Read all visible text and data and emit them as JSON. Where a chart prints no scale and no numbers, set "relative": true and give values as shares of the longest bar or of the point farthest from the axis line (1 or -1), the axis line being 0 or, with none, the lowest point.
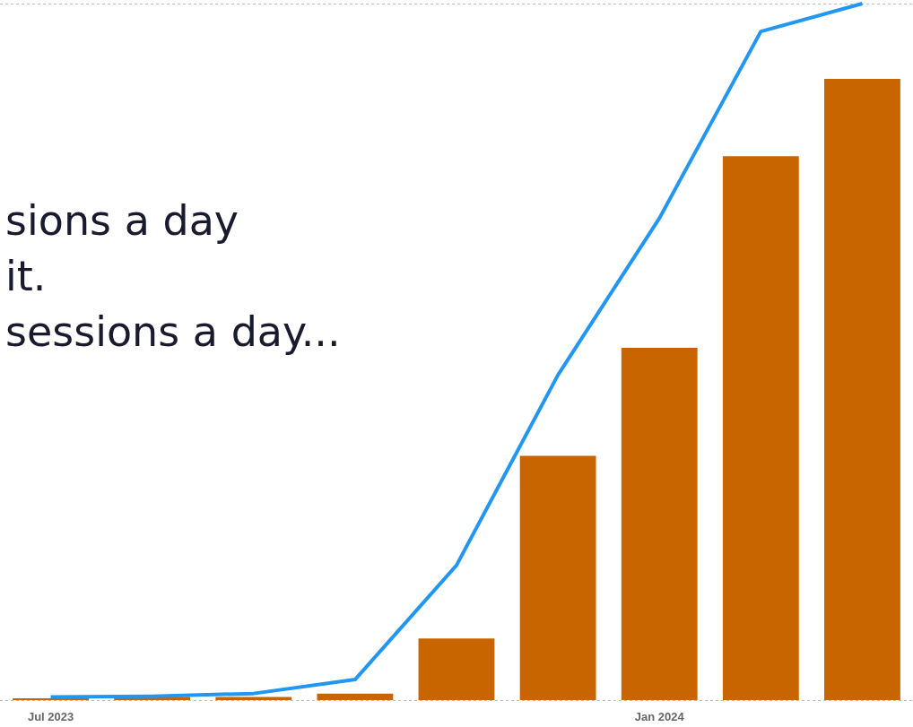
{
  "chart_data": {
    "type": "bar",
    "relative": true,
    "categories": [
      "Jul 2023",
      null,
      null,
      null,
      null,
      null,
      "Jan 2024",
      null,
      null
    ],
    "series": [
      {
        "color": "#c96500",
        "values": [
          0.003,
          0.005,
          0.005,
          0.01,
          0.089,
          0.351,
          0.506,
          0.781,
          0.892
        ]
      },
      {
        "type": "line",
        "color": "#2196f3",
        "values": [
          0.005,
          0.006,
          0.01,
          0.03,
          0.194,
          0.467,
          0.692,
          0.96,
          1
        ]
      }
    ],
    "grid": "y",
    "legend": false,
    "marker": "none",
    "line_style": "solid",
    "annotations": [
      "sions a day",
      "it.",
      "sessions a day..."
    ]
  }
}
